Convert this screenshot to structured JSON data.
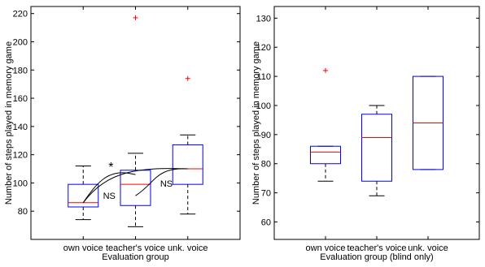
{
  "chart_data": [
    {
      "type": "box",
      "categories": [
        "own voice",
        "teacher's voice",
        "unk. voice"
      ],
      "xlabel": "Evaluation group",
      "ylabel": "Number of steps played in memory game",
      "ylim": [
        60,
        225
      ],
      "yticks": [
        80,
        100,
        120,
        140,
        160,
        180,
        200,
        220
      ],
      "grid": false,
      "box_color": "#0000ff",
      "median_color": "#ff0000",
      "outlier_color": "#ff0000",
      "boxes": [
        {
          "whisker_low": 74,
          "q1": 83,
          "median": 86,
          "q3": 99,
          "whisker_high": 112,
          "outliers": []
        },
        {
          "whisker_low": 69,
          "q1": 84,
          "median": 99,
          "q3": 109,
          "whisker_high": 121,
          "outliers": [
            217
          ]
        },
        {
          "whisker_low": 78,
          "q1": 99,
          "median": 110,
          "q3": 127,
          "whisker_high": 134,
          "outliers": [
            174
          ]
        }
      ],
      "annotations": [
        {
          "from": "own voice",
          "to": "teacher's voice",
          "label": "*"
        },
        {
          "from": "own voice",
          "to": "unk. voice",
          "label": "NS"
        },
        {
          "from": "teacher's voice",
          "to": "unk. voice",
          "label": "NS"
        }
      ]
    },
    {
      "type": "box",
      "categories": [
        "own voice",
        "teacher's voice",
        "unk. voice"
      ],
      "xlabel": "Evaluation group (blind only)",
      "ylabel": "Number of steps played in memory game",
      "ylim": [
        54,
        134
      ],
      "yticks": [
        60,
        70,
        80,
        90,
        100,
        110,
        120,
        130
      ],
      "grid": false,
      "box_color": "#0000ff",
      "median_color": "#ff0000",
      "outlier_color": "#ff0000",
      "boxes": [
        {
          "whisker_low": 74,
          "q1": 80,
          "median": 84,
          "q3": 86,
          "whisker_high": 86,
          "outliers": [
            112
          ]
        },
        {
          "whisker_low": 69,
          "q1": 74,
          "median": 89,
          "q3": 97,
          "whisker_high": 100,
          "outliers": []
        },
        {
          "whisker_low": 78,
          "q1": 78,
          "median": 94,
          "q3": 110,
          "whisker_high": 110,
          "outliers": []
        }
      ],
      "annotations": []
    }
  ]
}
